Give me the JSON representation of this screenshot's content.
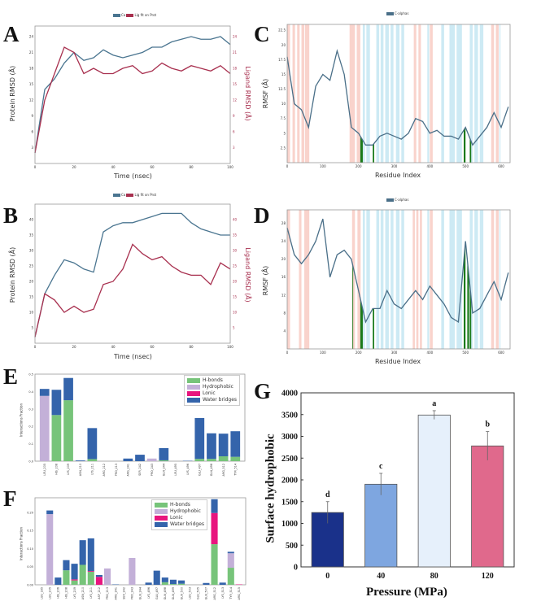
{
  "panel_labels": [
    "A",
    "B",
    "C",
    "D",
    "E",
    "F",
    "G"
  ],
  "chart_data": [
    {
      "panel": "A",
      "type": "line",
      "legend": [
        "Cα",
        "Lig fit on Prot"
      ],
      "xlabel": "Time (nsec)",
      "ylabel": "Protein RMSD (Å)",
      "y2label": "Ligand RMSD (Å)",
      "xlim": [
        0,
        100
      ],
      "ylim": [
        0,
        26
      ],
      "xticks": [
        0,
        20,
        40,
        60,
        80,
        100
      ],
      "yticks": [
        3,
        6,
        9,
        12,
        15,
        18,
        21,
        24
      ],
      "y2ticks": [
        3,
        6,
        9,
        12,
        15,
        18,
        21,
        24
      ],
      "x": [
        0,
        5,
        10,
        15,
        20,
        25,
        30,
        35,
        40,
        45,
        50,
        55,
        60,
        65,
        70,
        75,
        80,
        85,
        90,
        95,
        100
      ],
      "series": [
        {
          "name": "Cα",
          "color": "#4a7590",
          "values": [
            2,
            14,
            16,
            19,
            21,
            19.5,
            20,
            21.5,
            20.5,
            20,
            20.5,
            21,
            22,
            22,
            23,
            23.5,
            24,
            23.5,
            23.5,
            24,
            22.5
          ]
        },
        {
          "name": "Lig fit on Prot",
          "color": "#a8304f",
          "values": [
            2,
            12,
            17,
            22,
            21,
            17,
            18,
            17,
            17,
            18,
            18.5,
            17,
            17.5,
            19,
            18,
            17.5,
            18.5,
            18,
            17.5,
            18.5,
            17
          ]
        }
      ]
    },
    {
      "panel": "B",
      "type": "line",
      "legend": [
        "Cα",
        "Lig fit on Prot"
      ],
      "xlabel": "Time (nsec)",
      "ylabel": "Protein RMSD (Å)",
      "y2label": "Ligand RMSD (Å)",
      "xlim": [
        0,
        100
      ],
      "ylim": [
        0,
        45
      ],
      "xticks": [
        0,
        20,
        40,
        60,
        80,
        100
      ],
      "yticks": [
        5,
        10,
        15,
        20,
        25,
        30,
        35,
        40
      ],
      "y2ticks": [
        5,
        10,
        15,
        20,
        25,
        30,
        35,
        40
      ],
      "x": [
        0,
        5,
        10,
        15,
        20,
        25,
        30,
        35,
        40,
        45,
        50,
        55,
        60,
        65,
        70,
        75,
        80,
        85,
        90,
        95,
        100
      ],
      "series": [
        {
          "name": "Cα",
          "color": "#4a7590",
          "values": [
            2,
            16,
            22,
            27,
            26,
            24,
            23,
            36,
            38,
            39,
            39,
            40,
            41,
            42,
            42,
            42,
            39,
            37,
            36,
            35,
            35
          ]
        },
        {
          "name": "Lig fit on Prot",
          "color": "#a8304f",
          "values": [
            2,
            16,
            14,
            10,
            12,
            10,
            11,
            19,
            20,
            24,
            32,
            29,
            27,
            28,
            25,
            23,
            22,
            22,
            19,
            26,
            24
          ]
        }
      ]
    },
    {
      "panel": "C",
      "type": "line",
      "legend": [
        "C-alphas"
      ],
      "xlabel": "Residue Index",
      "ylabel": "RMSF (Å)",
      "xlim": [
        0,
        625
      ],
      "ylim": [
        0,
        23.5
      ],
      "xticks": [
        0,
        100,
        200,
        300,
        400,
        500,
        600
      ],
      "yticks": [
        2.5,
        5.0,
        7.5,
        10.0,
        12.5,
        15.0,
        17.5,
        20.0,
        22.5
      ],
      "x": [
        0,
        20,
        40,
        60,
        80,
        100,
        120,
        140,
        160,
        180,
        200,
        220,
        240,
        260,
        280,
        300,
        320,
        340,
        360,
        380,
        400,
        420,
        440,
        460,
        480,
        500,
        520,
        540,
        560,
        580,
        600,
        620
      ],
      "series": [
        {
          "name": "C-alphas",
          "color": "#4a6f88",
          "values": [
            18,
            10,
            9,
            6,
            13,
            15,
            14,
            19,
            15,
            6,
            5,
            3,
            3,
            4.5,
            5,
            4.5,
            4,
            5,
            7.5,
            7,
            5,
            5.5,
            4.5,
            4.5,
            4,
            6,
            3,
            4.5,
            6,
            8.5,
            6,
            9.5
          ]
        }
      ],
      "helix_ranges": [
        [
          0,
          8
        ],
        [
          15,
          22
        ],
        [
          28,
          35
        ],
        [
          40,
          48
        ],
        [
          50,
          62
        ],
        [
          175,
          190
        ],
        [
          195,
          205
        ],
        [
          355,
          362
        ],
        [
          368,
          375
        ],
        [
          400,
          408
        ],
        [
          572,
          580
        ],
        [
          585,
          593
        ]
      ],
      "strand_ranges": [
        [
          212,
          218
        ],
        [
          222,
          232
        ],
        [
          250,
          258
        ],
        [
          262,
          270
        ],
        [
          275,
          285
        ],
        [
          290,
          298
        ],
        [
          305,
          315
        ],
        [
          320,
          328
        ],
        [
          393,
          398
        ],
        [
          432,
          440
        ],
        [
          455,
          470
        ],
        [
          475,
          490
        ],
        [
          512,
          520
        ],
        [
          525,
          535
        ],
        [
          540,
          550
        ],
        [
          595,
          598
        ]
      ],
      "contact_ranges": [
        [
          205,
          212
        ],
        [
          240,
          244
        ],
        [
          495,
          500
        ],
        [
          512,
          516
        ]
      ]
    },
    {
      "panel": "D",
      "type": "line",
      "legend": [
        "C-alphas"
      ],
      "xlabel": "Residue Index",
      "ylabel": "RMSF (Å)",
      "xlim": [
        0,
        625
      ],
      "ylim": [
        0,
        31
      ],
      "xticks": [
        0,
        100,
        200,
        300,
        400,
        500,
        600
      ],
      "yticks": [
        4,
        8,
        12,
        16,
        20,
        24,
        28
      ],
      "x": [
        0,
        20,
        40,
        60,
        80,
        100,
        120,
        140,
        160,
        180,
        200,
        220,
        240,
        260,
        280,
        300,
        320,
        340,
        360,
        380,
        400,
        420,
        440,
        460,
        480,
        500,
        520,
        540,
        560,
        580,
        600,
        620
      ],
      "series": [
        {
          "name": "C-alphas",
          "color": "#4a6f88",
          "values": [
            27,
            21,
            19,
            21,
            24,
            29,
            16,
            21,
            22,
            20,
            13,
            6,
            9,
            9,
            13,
            10,
            9,
            11,
            13,
            11,
            14,
            12,
            10,
            7,
            6,
            24,
            8,
            9,
            12,
            15,
            11,
            17
          ]
        }
      ],
      "helix_ranges": [
        [
          0,
          8
        ],
        [
          33,
          40
        ],
        [
          48,
          62
        ],
        [
          182,
          190
        ],
        [
          197,
          206
        ],
        [
          352,
          358
        ],
        [
          362,
          368
        ],
        [
          372,
          378
        ],
        [
          400,
          408
        ],
        [
          572,
          580
        ],
        [
          585,
          593
        ]
      ],
      "strand_ranges": [
        [
          212,
          218
        ],
        [
          222,
          232
        ],
        [
          250,
          258
        ],
        [
          262,
          270
        ],
        [
          275,
          285
        ],
        [
          290,
          298
        ],
        [
          305,
          315
        ],
        [
          320,
          328
        ],
        [
          393,
          398
        ],
        [
          432,
          440
        ],
        [
          455,
          470
        ],
        [
          475,
          490
        ],
        [
          512,
          520
        ],
        [
          525,
          535
        ],
        [
          540,
          550
        ],
        [
          595,
          598
        ]
      ],
      "contact_ranges": [
        [
          183,
          185
        ],
        [
          205,
          212
        ],
        [
          240,
          244
        ],
        [
          495,
          500
        ],
        [
          505,
          510
        ],
        [
          512,
          516
        ]
      ]
    },
    {
      "panel": "E",
      "type": "bar",
      "stacked": true,
      "ylabel": "Interactions Fraction",
      "ylim": [
        0,
        0.5
      ],
      "yticks": [
        0.0,
        0.1,
        0.2,
        0.3,
        0.4,
        0.5
      ],
      "categories": [
        "LEU_205",
        "HIS_208",
        "LYS_209",
        "ASN_210",
        "LYS_211",
        "ARG_212",
        "PRO_213",
        "ARG_241",
        "SER_242",
        "PRO_243",
        "GLN_244",
        "LEU_495",
        "LYS_496",
        "GLU_497",
        "GLN_498",
        "ARG_512",
        "TYR_514"
      ],
      "series": [
        {
          "name": "H-bonds",
          "color": "#77c47a",
          "values": [
            0,
            0.265,
            0.35,
            0,
            0.012,
            0,
            0,
            0,
            0,
            0,
            0.005,
            0,
            0,
            0.013,
            0.013,
            0.028,
            0.025
          ]
        },
        {
          "name": "Hydrophobic",
          "color": "#c3b0d8",
          "values": [
            0.375,
            0,
            0,
            0,
            0,
            0,
            0,
            0,
            0,
            0.015,
            0,
            0,
            0,
            0,
            0,
            0,
            0
          ]
        },
        {
          "name": "Lonic",
          "color": "#e8157e",
          "values": [
            0,
            0,
            0,
            0,
            0,
            0,
            0,
            0,
            0,
            0,
            0,
            0,
            0,
            0,
            0,
            0,
            0
          ]
        },
        {
          "name": "Water bridges",
          "color": "#3464ab",
          "values": [
            0.04,
            0.145,
            0.128,
            0.004,
            0.178,
            0,
            0,
            0.015,
            0.037,
            0,
            0.07,
            0,
            0.002,
            0.235,
            0.147,
            0.13,
            0.147
          ]
        }
      ]
    },
    {
      "panel": "F",
      "type": "bar",
      "stacked": true,
      "ylabel": "Interactions Fraction",
      "ylim": [
        0,
        0.24
      ],
      "yticks": [
        0.0,
        0.05,
        0.1,
        0.15,
        0.2
      ],
      "categories": [
        "LEU_185",
        "LEU_205",
        "HIS_206",
        "HIS_208",
        "LYS_209",
        "ASN_210",
        "LYS_211",
        "ASP_212",
        "PRO_213",
        "ARG_241",
        "SER_242",
        "PRO_243",
        "GLN_244",
        "LYS_496",
        "GLU_497",
        "GLN_498",
        "GLN_499",
        "GLN_500",
        "LEU_503",
        "GLU_505",
        "GLN_507",
        "ARG_512",
        "LYS_513",
        "TYR_514",
        "ARG_515"
      ],
      "series": [
        {
          "name": "H-bonds",
          "color": "#77c47a",
          "values": [
            0,
            0,
            0,
            0.04,
            0.012,
            0.055,
            0.036,
            0,
            0,
            0,
            0,
            0,
            0,
            0,
            0,
            0.007,
            0.002,
            0.003,
            0,
            0,
            0,
            0.112,
            0,
            0.047,
            0
          ]
        },
        {
          "name": "Hydrophobic",
          "color": "#c3b0d8",
          "values": [
            0,
            0.195,
            0,
            0,
            0,
            0,
            0,
            0,
            0.045,
            0,
            0,
            0.074,
            0,
            0,
            0,
            0,
            0,
            0,
            0,
            0,
            0,
            0,
            0,
            0.04,
            0
          ]
        },
        {
          "name": "Lonic",
          "color": "#e8157e",
          "values": [
            0,
            0,
            0,
            0,
            0.003,
            0,
            0.002,
            0.022,
            0,
            0,
            0,
            0,
            0,
            0,
            0,
            0,
            0,
            0,
            0,
            0,
            0,
            0.086,
            0,
            0,
            0.001
          ]
        },
        {
          "name": "Water bridges",
          "color": "#3464ab",
          "values": [
            0,
            0.01,
            0.02,
            0.028,
            0.043,
            0.068,
            0.09,
            0.005,
            0,
            0.001,
            0,
            0,
            0,
            0.006,
            0.039,
            0.013,
            0.012,
            0.009,
            0,
            0,
            0.005,
            0.038,
            0.006,
            0.004,
            0
          ]
        }
      ]
    },
    {
      "panel": "G",
      "type": "bar",
      "xlabel": "Pressure (MPa)",
      "ylabel": "Surface hydrophobic",
      "ylim": [
        0,
        4000
      ],
      "yticks": [
        0,
        500,
        1000,
        1500,
        2000,
        2500,
        3000,
        3500,
        4000
      ],
      "categories": [
        "0",
        "40",
        "80",
        "120"
      ],
      "values": [
        1250,
        1900,
        3490,
        2780
      ],
      "errors": [
        250,
        250,
        100,
        330
      ],
      "letters": [
        "d",
        "c",
        "a",
        "b"
      ],
      "colors": [
        "#1a318a",
        "#7ea6e0",
        "#e6f0fb",
        "#e0698c"
      ]
    }
  ]
}
